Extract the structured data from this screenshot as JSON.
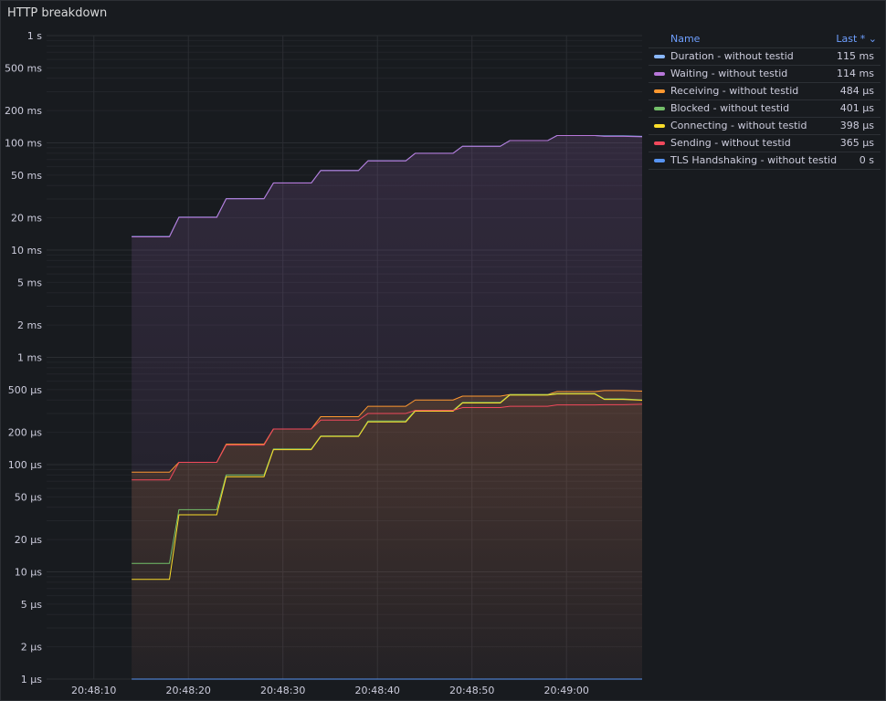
{
  "panel": {
    "title": "HTTP breakdown"
  },
  "legend": {
    "name_header": "Name",
    "last_header": "Last * ⌄",
    "items": [
      {
        "name": "Duration - without testid",
        "last": "115 ms",
        "color": "#8ab8ff"
      },
      {
        "name": "Waiting - without testid",
        "last": "114 ms",
        "color": "#b877d9"
      },
      {
        "name": "Receiving - without testid",
        "last": "484 µs",
        "color": "#ff9830"
      },
      {
        "name": "Blocked - without testid",
        "last": "401 µs",
        "color": "#73bf69"
      },
      {
        "name": "Connecting - without testid",
        "last": "398 µs",
        "color": "#fade2a"
      },
      {
        "name": "Sending - without testid",
        "last": "365 µs",
        "color": "#f2495c"
      },
      {
        "name": "TLS Handshaking - without testid",
        "last": "0 s",
        "color": "#5794f2"
      }
    ]
  },
  "chart_data": {
    "type": "line",
    "y_scale": "log",
    "ylim_seconds": [
      1e-06,
      1
    ],
    "y_ticks": [
      {
        "label": "1 s",
        "value": 1
      },
      {
        "label": "500 ms",
        "value": 0.5
      },
      {
        "label": "200 ms",
        "value": 0.2
      },
      {
        "label": "100 ms",
        "value": 0.1
      },
      {
        "label": "50 ms",
        "value": 0.05
      },
      {
        "label": "20 ms",
        "value": 0.02
      },
      {
        "label": "10 ms",
        "value": 0.01
      },
      {
        "label": "5 ms",
        "value": 0.005
      },
      {
        "label": "2 ms",
        "value": 0.002
      },
      {
        "label": "1 ms",
        "value": 0.001
      },
      {
        "label": "500 µs",
        "value": 0.0005
      },
      {
        "label": "200 µs",
        "value": 0.0002
      },
      {
        "label": "100 µs",
        "value": 0.0001
      },
      {
        "label": "50 µs",
        "value": 5e-05
      },
      {
        "label": "20 µs",
        "value": 2e-05
      },
      {
        "label": "10 µs",
        "value": 1e-05
      },
      {
        "label": "5 µs",
        "value": 5e-06
      },
      {
        "label": "2 µs",
        "value": 2e-06
      },
      {
        "label": "1 µs",
        "value": 1e-06
      }
    ],
    "xlim": [
      "20:48:05",
      "20:49:08"
    ],
    "x_ticks": [
      "20:48:10",
      "20:48:20",
      "20:48:30",
      "20:48:40",
      "20:48:50",
      "20:49:00"
    ],
    "x": [
      "20:48:14",
      "20:48:18",
      "20:48:19",
      "20:48:23",
      "20:48:24",
      "20:48:28",
      "20:48:29",
      "20:48:33",
      "20:48:34",
      "20:48:38",
      "20:48:39",
      "20:48:43",
      "20:48:44",
      "20:48:48",
      "20:48:49",
      "20:48:53",
      "20:48:54",
      "20:48:58",
      "20:48:59",
      "20:49:03",
      "20:49:04",
      "20:49:06",
      "20:49:08"
    ],
    "series": [
      {
        "name": "Duration - without testid",
        "color": "#8ab8ff",
        "values": [
          0.0134,
          0.0134,
          0.0203,
          0.0203,
          0.0302,
          0.0302,
          0.0423,
          0.0423,
          0.0553,
          0.0553,
          0.068,
          0.068,
          0.08,
          0.08,
          0.093,
          0.093,
          0.105,
          0.105,
          0.117,
          0.117,
          0.116,
          0.116,
          0.115
        ]
      },
      {
        "name": "Waiting - without testid",
        "color": "#b877d9",
        "values": [
          0.0133,
          0.0133,
          0.0202,
          0.0202,
          0.0301,
          0.0301,
          0.0422,
          0.0422,
          0.0552,
          0.0552,
          0.0679,
          0.0679,
          0.0799,
          0.0799,
          0.0929,
          0.0929,
          0.1049,
          0.1049,
          0.1169,
          0.1169,
          0.115,
          0.115,
          0.114
        ]
      },
      {
        "name": "Receiving - without testid",
        "color": "#ff9830",
        "values": [
          8.5e-05,
          8.5e-05,
          0.000105,
          0.000105,
          0.000155,
          0.000155,
          0.000215,
          0.000215,
          0.00028,
          0.00028,
          0.00035,
          0.00035,
          0.0004,
          0.0004,
          0.000435,
          0.000435,
          0.00045,
          0.00045,
          0.00048,
          0.00048,
          0.00049,
          0.00049,
          0.000484
        ]
      },
      {
        "name": "Blocked - without testid",
        "color": "#73bf69",
        "values": [
          1.2e-05,
          1.2e-05,
          3.8e-05,
          3.8e-05,
          8e-05,
          8e-05,
          0.00014,
          0.00014,
          0.000185,
          0.000185,
          0.000255,
          0.000255,
          0.00032,
          0.00032,
          0.00038,
          0.00038,
          0.00045,
          0.00045,
          0.00046,
          0.00046,
          0.00041,
          0.00041,
          0.000401
        ]
      },
      {
        "name": "Connecting - without testid",
        "color": "#fade2a",
        "values": [
          8.5e-06,
          8.5e-06,
          3.4e-05,
          3.4e-05,
          7.7e-05,
          7.7e-05,
          0.000138,
          0.000138,
          0.000183,
          0.000183,
          0.00025,
          0.00025,
          0.000315,
          0.000315,
          0.000375,
          0.000375,
          0.000445,
          0.000445,
          0.000455,
          0.000455,
          0.000405,
          0.000405,
          0.000398
        ]
      },
      {
        "name": "Sending - without testid",
        "color": "#f2495c",
        "values": [
          7.2e-05,
          7.2e-05,
          0.000105,
          0.000105,
          0.000152,
          0.000152,
          0.000215,
          0.000215,
          0.00026,
          0.00026,
          0.0003,
          0.0003,
          0.00032,
          0.00032,
          0.00034,
          0.00034,
          0.00035,
          0.00035,
          0.00036,
          0.00036,
          0.000362,
          0.000362,
          0.000365
        ]
      },
      {
        "name": "TLS Handshaking - without testid",
        "color": "#5794f2",
        "values": [
          0,
          0,
          0,
          0,
          0,
          0,
          0,
          0,
          0,
          0,
          0,
          0,
          0,
          0,
          0,
          0,
          0,
          0,
          0,
          0,
          0,
          0,
          0
        ]
      }
    ]
  }
}
